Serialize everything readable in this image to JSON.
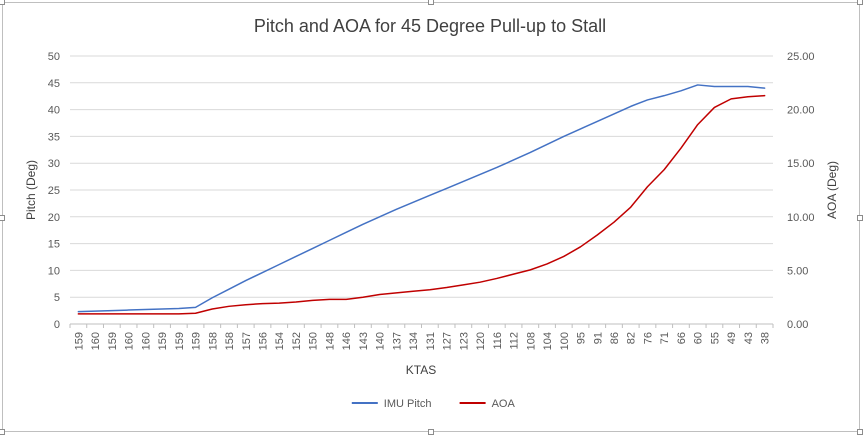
{
  "chart_data": {
    "type": "line",
    "title": "Pitch and AOA for 45 Degree Pull-up to Stall",
    "xlabel": "KTAS",
    "ylabel": "Pitch (Deg)",
    "y2label": "AOA (Deg)",
    "ylim": [
      0,
      50
    ],
    "y2lim": [
      0,
      25
    ],
    "yticks": [
      "0",
      "5",
      "10",
      "15",
      "20",
      "25",
      "30",
      "35",
      "40",
      "45",
      "50"
    ],
    "y2ticks": [
      "0.00",
      "5.00",
      "10.00",
      "15.00",
      "20.00",
      "25.00"
    ],
    "categories": [
      "159",
      "160",
      "159",
      "160",
      "160",
      "159",
      "159",
      "159",
      "158",
      "158",
      "157",
      "156",
      "154",
      "152",
      "150",
      "148",
      "146",
      "143",
      "140",
      "137",
      "134",
      "131",
      "127",
      "123",
      "120",
      "116",
      "112",
      "108",
      "104",
      "100",
      "95",
      "91",
      "86",
      "82",
      "76",
      "71",
      "66",
      "60",
      "55",
      "49",
      "43",
      "38"
    ],
    "grid": true,
    "legend_position": "bottom",
    "series": [
      {
        "name": "IMU Pitch",
        "axis": "left",
        "color": "#4472c4",
        "values": [
          2.3,
          2.4,
          2.5,
          2.6,
          2.7,
          2.8,
          2.9,
          3.1,
          4.9,
          6.5,
          8.1,
          9.6,
          11.1,
          12.6,
          14.1,
          15.6,
          17.1,
          18.6,
          20.0,
          21.4,
          22.7,
          24.0,
          25.3,
          26.6,
          27.9,
          29.2,
          30.6,
          32.0,
          33.5,
          35.0,
          36.4,
          37.8,
          39.2,
          40.6,
          41.8,
          42.6,
          43.5,
          44.6,
          44.3,
          44.3,
          44.3,
          44.0
        ]
      },
      {
        "name": "AOA",
        "axis": "right",
        "color": "#c00000",
        "values": [
          0.95,
          0.95,
          0.95,
          0.95,
          0.95,
          0.95,
          0.95,
          1.0,
          1.4,
          1.65,
          1.8,
          1.9,
          1.95,
          2.05,
          2.2,
          2.3,
          2.3,
          2.5,
          2.75,
          2.9,
          3.05,
          3.2,
          3.4,
          3.65,
          3.9,
          4.25,
          4.65,
          5.05,
          5.6,
          6.3,
          7.2,
          8.3,
          9.5,
          10.9,
          12.8,
          14.4,
          16.4,
          18.6,
          20.2,
          21.0,
          21.2,
          21.3
        ]
      }
    ]
  }
}
